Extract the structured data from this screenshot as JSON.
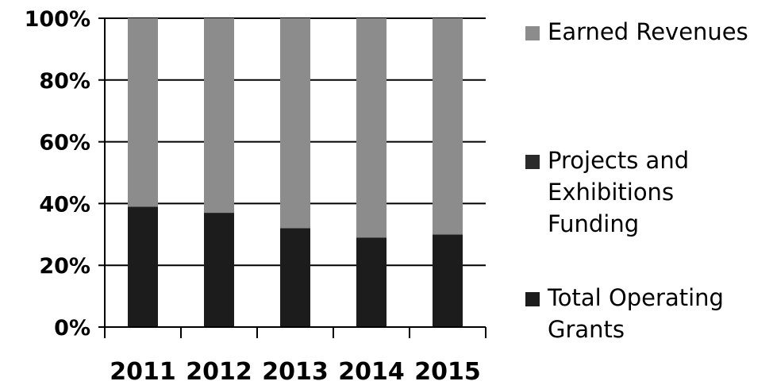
{
  "chart_data": {
    "type": "bar",
    "stacked": true,
    "percent": true,
    "categories": [
      "2011",
      "2012",
      "2013",
      "2014",
      "2015"
    ],
    "series": [
      {
        "name": "Total Operating Grants",
        "values": [
          39,
          37,
          32,
          29,
          30
        ],
        "color": "#1c1c1c"
      },
      {
        "name": "Projects and Exhibitions Funding",
        "values": [
          0,
          0,
          0,
          0,
          0
        ],
        "color": "#2a2a2a"
      },
      {
        "name": "Earned Revenues",
        "values": [
          61,
          63,
          68,
          71,
          70
        ],
        "color": "#8c8c8c"
      }
    ],
    "y_ticks": [
      "0%",
      "20%",
      "40%",
      "60%",
      "80%",
      "100%"
    ],
    "ylim": [
      0,
      100
    ],
    "grid": true,
    "legend_position": "right"
  },
  "legend": {
    "items": [
      {
        "label": "Earned Revenues",
        "color": "#8c8c8c"
      },
      {
        "label": "Projects and Exhibitions Funding",
        "color": "#2a2a2a"
      },
      {
        "label": "Total Operating Grants",
        "color": "#1c1c1c"
      }
    ]
  }
}
